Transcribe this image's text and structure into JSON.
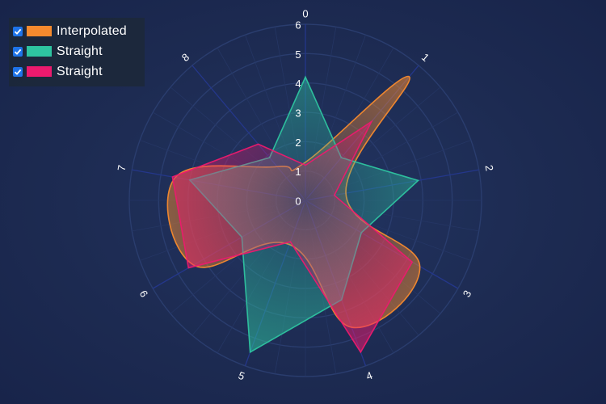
{
  "chart_data": {
    "type": "radar",
    "angles": [
      "0",
      "1",
      "2",
      "3",
      "4",
      "5",
      "6",
      "7",
      "8"
    ],
    "radial_ticks": [
      "0",
      "1",
      "2",
      "3",
      "4",
      "5",
      "6"
    ],
    "rlim": [
      0,
      6
    ],
    "series": [
      {
        "name": "Interpolated",
        "color": "#f58a2e",
        "interpolated": true,
        "values": [
          1.3,
          5.5,
          1.4,
          4.5,
          4.6,
          1.6,
          4.4,
          4.5,
          1.5
        ]
      },
      {
        "name": "Straight",
        "color": "#2ec4a0",
        "interpolated": false,
        "values": [
          4.2,
          1.9,
          3.9,
          2.2,
          3.6,
          5.5,
          2.5,
          4.0,
          1.9
        ]
      },
      {
        "name": "Straight",
        "color": "#ec1a6e",
        "interpolated": false,
        "values": [
          1.2,
          3.5,
          1.0,
          4.2,
          5.5,
          1.5,
          4.6,
          4.6,
          2.5
        ]
      }
    ]
  },
  "legend": {
    "items": [
      {
        "label": "Interpolated",
        "color": "#f58a2e",
        "checked": true
      },
      {
        "label": "Straight",
        "color": "#2ec4a0",
        "checked": true
      },
      {
        "label": "Straight",
        "color": "#ec1a6e",
        "checked": true
      }
    ]
  }
}
